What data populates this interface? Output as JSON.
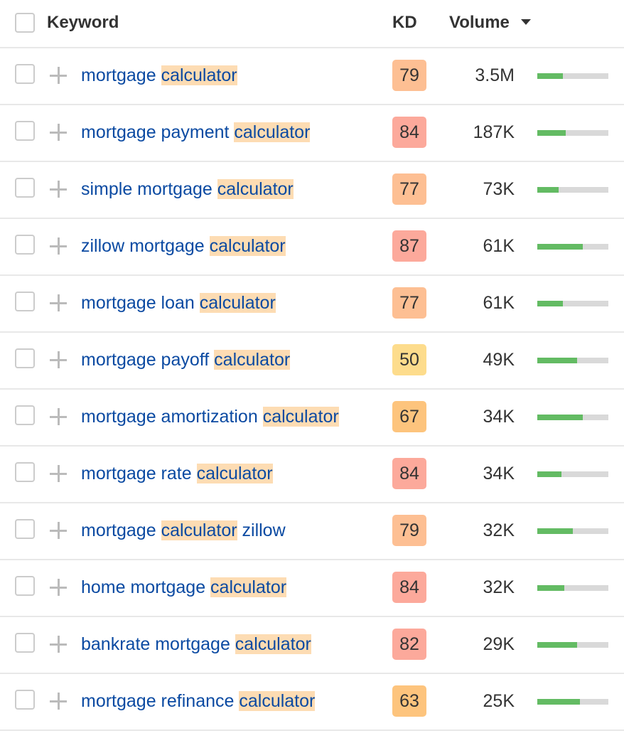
{
  "header": {
    "keyword": "Keyword",
    "kd": "KD",
    "volume": "Volume",
    "sort_icon": "caret-down-icon"
  },
  "colors": {
    "link": "#0b4aa2",
    "highlight": "#fddcb3",
    "bar_fill": "#63bb63",
    "bar_track": "#d9d9d9",
    "kd_red": "#fca99b",
    "kd_orange": "#fdbf93",
    "kd_amber": "#fdc47d",
    "kd_yellow": "#fddc8c"
  },
  "rows": [
    {
      "pre": "mortgage ",
      "hl": "calculator",
      "post": "",
      "kd": "79",
      "kd_color": "#fdbf93",
      "volume": "3.5M",
      "volume_bar_pct": 36
    },
    {
      "pre": "mortgage payment ",
      "hl": "calculator",
      "post": "",
      "kd": "84",
      "kd_color": "#fca99b",
      "volume": "187K",
      "volume_bar_pct": 40
    },
    {
      "pre": "simple mortgage ",
      "hl": "calculator",
      "post": "",
      "kd": "77",
      "kd_color": "#fdbf93",
      "volume": "73K",
      "volume_bar_pct": 30
    },
    {
      "pre": "zillow mortgage ",
      "hl": "calculator",
      "post": "",
      "kd": "87",
      "kd_color": "#fca99b",
      "volume": "61K",
      "volume_bar_pct": 64
    },
    {
      "pre": "mortgage loan ",
      "hl": "calculator",
      "post": "",
      "kd": "77",
      "kd_color": "#fdbf93",
      "volume": "61K",
      "volume_bar_pct": 36
    },
    {
      "pre": "mortgage payoff ",
      "hl": "calculator",
      "post": "",
      "kd": "50",
      "kd_color": "#fddc8c",
      "volume": "49K",
      "volume_bar_pct": 56
    },
    {
      "pre": "mortgage amortization ",
      "hl": "calculator",
      "post": "",
      "kd": "67",
      "kd_color": "#fdc47d",
      "volume": "34K",
      "volume_bar_pct": 64
    },
    {
      "pre": "mortgage rate ",
      "hl": "calculator",
      "post": "",
      "kd": "84",
      "kd_color": "#fca99b",
      "volume": "34K",
      "volume_bar_pct": 34
    },
    {
      "pre": "mortgage ",
      "hl": "calculator",
      "post": " zillow",
      "kd": "79",
      "kd_color": "#fdbf93",
      "volume": "32K",
      "volume_bar_pct": 50
    },
    {
      "pre": "home mortgage ",
      "hl": "calculator",
      "post": "",
      "kd": "84",
      "kd_color": "#fca99b",
      "volume": "32K",
      "volume_bar_pct": 38
    },
    {
      "pre": "bankrate mortgage ",
      "hl": "calculator",
      "post": "",
      "kd": "82",
      "kd_color": "#fca99b",
      "volume": "29K",
      "volume_bar_pct": 56
    },
    {
      "pre": "mortgage refinance ",
      "hl": "calculator",
      "post": "",
      "kd": "63",
      "kd_color": "#fdc47d",
      "volume": "25K",
      "volume_bar_pct": 60
    }
  ]
}
